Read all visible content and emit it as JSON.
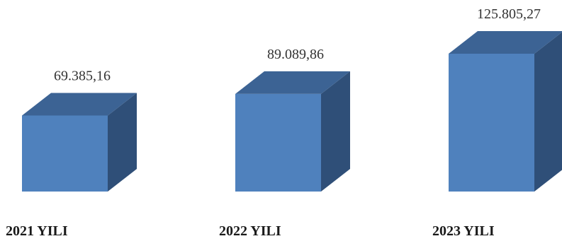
{
  "chart_data": {
    "type": "bar",
    "categories": [
      "2021 YILI",
      "2022 YILI",
      "2023 YILI"
    ],
    "values": [
      69385.16,
      89089.86,
      125805.27
    ],
    "data_labels": [
      "69.385,16",
      "89.089,86",
      "125.805,27"
    ],
    "style": "3d-column",
    "grid": false,
    "legend": "none",
    "colors": {
      "front": "#4f81bd",
      "top": "#3c6394",
      "side": "#2f4f78"
    }
  }
}
